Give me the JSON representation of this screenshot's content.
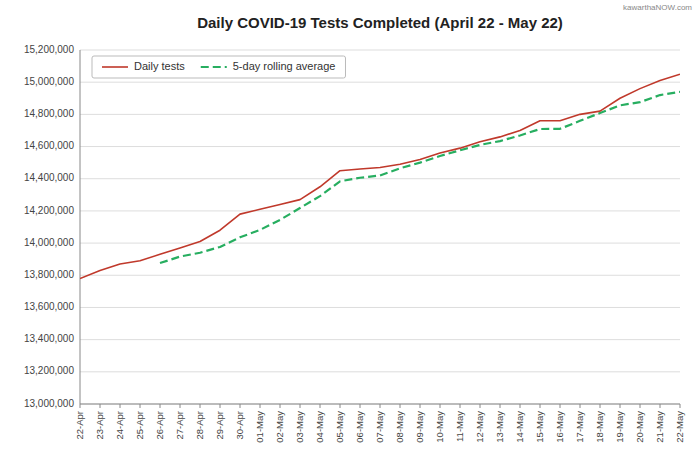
{
  "chart_data": {
    "type": "line",
    "title": "Daily COVID-19 Tests Completed (April 22 - May 22)",
    "categories": [
      "22-Apr",
      "23-Apr",
      "24-Apr",
      "25-Apr",
      "26-Apr",
      "27-Apr",
      "28-Apr",
      "29-Apr",
      "30-Apr",
      "01-May",
      "02-May",
      "03-May",
      "04-May",
      "05-May",
      "06-May",
      "07-May",
      "08-May",
      "09-May",
      "10-May",
      "11-May",
      "12-May",
      "13-May",
      "14-May",
      "15-May",
      "16-May",
      "17-May",
      "18-May",
      "19-May",
      "20-May",
      "21-May",
      "22-May"
    ],
    "series": [
      {
        "name": "Daily tests",
        "color": "#c0392b",
        "line_style": "solid",
        "values": [
          13780000,
          13830000,
          13870000,
          13890000,
          13930000,
          13970000,
          14010000,
          14080000,
          14180000,
          14210000,
          14240000,
          14270000,
          14350000,
          14450000,
          14460000,
          14470000,
          14490000,
          14520000,
          14560000,
          14590000,
          14630000,
          14660000,
          14700000,
          14760000,
          14760000,
          14800000,
          14820000,
          14900000,
          14960000,
          15010000,
          15050000
        ]
      },
      {
        "name": "5-day rolling average",
        "color": "#27ae60",
        "line_style": "dashed",
        "values": [
          null,
          null,
          null,
          null,
          13876000,
          13916000,
          13940000,
          13976000,
          14036000,
          14082000,
          14144000,
          14218000,
          14292000,
          14384000,
          14406000,
          14420000,
          14465000,
          14500000,
          14541000,
          14577000,
          14610000,
          14634000,
          14669000,
          14709000,
          14710000,
          14760000,
          14808000,
          14856000,
          14876000,
          14920000,
          14940000
        ]
      }
    ],
    "ylim": [
      13000000,
      15200000
    ],
    "yticks": [
      {
        "value": 13000000,
        "label": "13,000,000"
      },
      {
        "value": 13200000,
        "label": "13,200,000"
      },
      {
        "value": 13400000,
        "label": "13,400,000"
      },
      {
        "value": 13600000,
        "label": "13,600,000"
      },
      {
        "value": 13800000,
        "label": "13,800,000"
      },
      {
        "value": 14000000,
        "label": "14,000,000"
      },
      {
        "value": 14200000,
        "label": "14,200,000"
      },
      {
        "value": 14400000,
        "label": "14,400,000"
      },
      {
        "value": 14600000,
        "label": "14,600,000"
      },
      {
        "value": 14800000,
        "label": "14,800,000"
      },
      {
        "value": 15000000,
        "label": "15,000,000"
      },
      {
        "value": 15200000,
        "label": "15,200,000"
      }
    ],
    "grid": true,
    "legend": "upper left",
    "annotations": [
      "kawarthaNOW.com"
    ]
  }
}
